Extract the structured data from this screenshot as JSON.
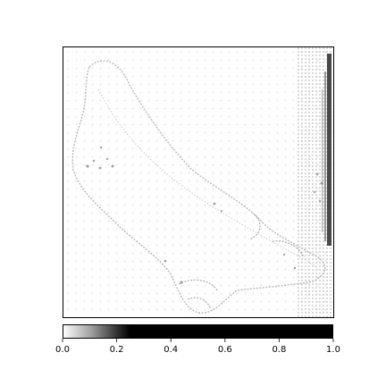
{
  "chart_data": {
    "type": "heatmap",
    "title": "",
    "xlabel": "",
    "ylabel": "",
    "colormap": "gray_r",
    "colors": {
      "low": "#ffffff",
      "high": "#000000",
      "frame": "#000000"
    },
    "colorbar": {
      "orientation": "horizontal",
      "placement": "bottom",
      "range": [
        0,
        1
      ],
      "tick_values": [
        0.0,
        0.2,
        0.4,
        0.6,
        0.8,
        1.0
      ],
      "tick_labels": [
        "0.0",
        "0.2",
        "0.4",
        "0.6",
        "0.8",
        "1.0"
      ],
      "gradient_stops": [
        {
          "value": 0.0,
          "intensity": 0.0
        },
        {
          "value": 0.1,
          "intensity": 0.35
        },
        {
          "value": 0.2,
          "intensity": 0.8
        },
        {
          "value": 0.25,
          "intensity": 1.0
        },
        {
          "value": 1.0,
          "intensity": 1.0
        }
      ]
    },
    "axes": {
      "x_ticks_visible": false,
      "y_ticks_visible": false,
      "grid": false
    },
    "image_content": "saliency-style attribution map: faint gray outline of a foot (diagonal from upper-left to lower-right), dotted grid artifacts, dense dark vertical band along the right edge"
  }
}
